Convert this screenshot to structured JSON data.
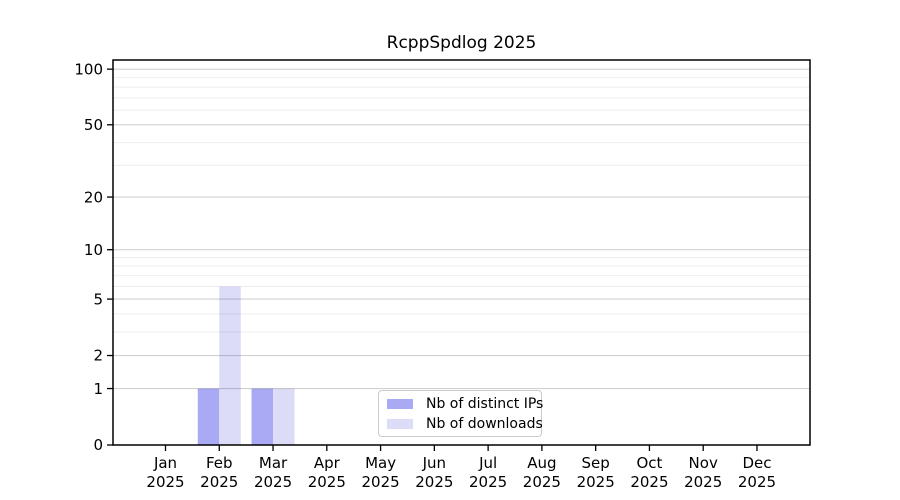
{
  "title": "RcppSpdlog 2025",
  "chart_data": {
    "type": "bar",
    "title": "RcppSpdlog 2025",
    "categories": [
      "Jan",
      "Feb",
      "Mar",
      "Apr",
      "May",
      "Jun",
      "Jul",
      "Aug",
      "Sep",
      "Oct",
      "Nov",
      "Dec"
    ],
    "x_year": "2025",
    "series": [
      {
        "name": "Nb of distinct IPs",
        "color": "#a9a9f4",
        "values": [
          0,
          1,
          1,
          0,
          0,
          0,
          0,
          0,
          0,
          0,
          0,
          0
        ]
      },
      {
        "name": "Nb of downloads",
        "color": "#dcdcf8",
        "values": [
          0,
          6,
          1,
          0,
          0,
          0,
          0,
          0,
          0,
          0,
          0,
          0
        ]
      }
    ],
    "xlabel": "",
    "ylabel": "",
    "y_scale": "log1p",
    "ylim": [
      0,
      112
    ],
    "y_ticks": [
      0,
      1,
      2,
      5,
      10,
      20,
      50,
      100
    ],
    "y_minor_gridlines": [
      3,
      4,
      6,
      7,
      8,
      9,
      30,
      40,
      60,
      70,
      80,
      90
    ],
    "grid": true,
    "legend_position": "lower center"
  },
  "colors": {
    "major_grid": "rgba(0,0,0,0.18)",
    "minor_grid": "rgba(0,0,0,0.07)",
    "spine": "#000000",
    "legend_border": "#cbcbcb"
  }
}
